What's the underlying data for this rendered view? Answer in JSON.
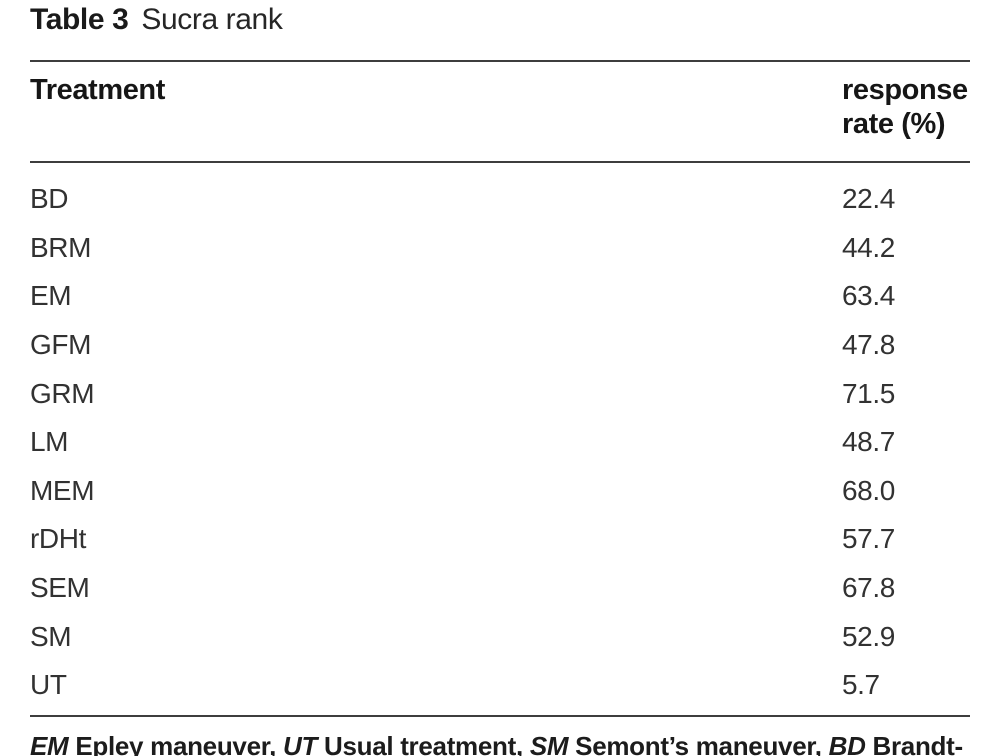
{
  "page": {
    "background": "#ffffff",
    "body_text_color": "#323232",
    "heading_color": "#161616",
    "rule_color": "#3e3e3e"
  },
  "title": {
    "label": "Table 3",
    "caption": "Sucra rank"
  },
  "table": {
    "header": {
      "treatment": "Treatment",
      "response_line1": "response",
      "response_line2": "rate (%)"
    },
    "rows": [
      {
        "treatment": "BD",
        "rate": "22.4"
      },
      {
        "treatment": "BRM",
        "rate": "44.2"
      },
      {
        "treatment": "EM",
        "rate": "63.4"
      },
      {
        "treatment": "GFM",
        "rate": "47.8"
      },
      {
        "treatment": "GRM",
        "rate": "71.5"
      },
      {
        "treatment": "LM",
        "rate": "48.7"
      },
      {
        "treatment": "MEM",
        "rate": "68.0"
      },
      {
        "treatment": "rDHt",
        "rate": "57.7"
      },
      {
        "treatment": "SEM",
        "rate": "67.8"
      },
      {
        "treatment": "SM",
        "rate": "52.9"
      },
      {
        "treatment": "UT",
        "rate": "5.7"
      }
    ]
  },
  "footnote": {
    "segments": [
      {
        "text": "EM",
        "italic": true
      },
      {
        "text": " Epley maneuver, ",
        "italic": false
      },
      {
        "text": "UT",
        "italic": true
      },
      {
        "text": " Usual treatment, ",
        "italic": false
      },
      {
        "text": "SM",
        "italic": true
      },
      {
        "text": " Semont’s maneuver, ",
        "italic": false
      },
      {
        "text": "BD",
        "italic": true
      },
      {
        "text": " Brandt-",
        "italic": false
      }
    ]
  },
  "chart_data": {
    "type": "table",
    "title": "Table 3 Sucra rank",
    "columns": [
      "Treatment",
      "response rate (%)"
    ],
    "categories": [
      "BD",
      "BRM",
      "EM",
      "GFM",
      "GRM",
      "LM",
      "MEM",
      "rDHt",
      "SEM",
      "SM",
      "UT"
    ],
    "values": [
      22.4,
      44.2,
      63.4,
      47.8,
      71.5,
      48.7,
      68.0,
      57.7,
      67.8,
      52.9,
      5.7
    ],
    "footnote_visible": "EM Epley maneuver, UT Usual treatment, SM Semont’s maneuver, BD Brandt-"
  }
}
